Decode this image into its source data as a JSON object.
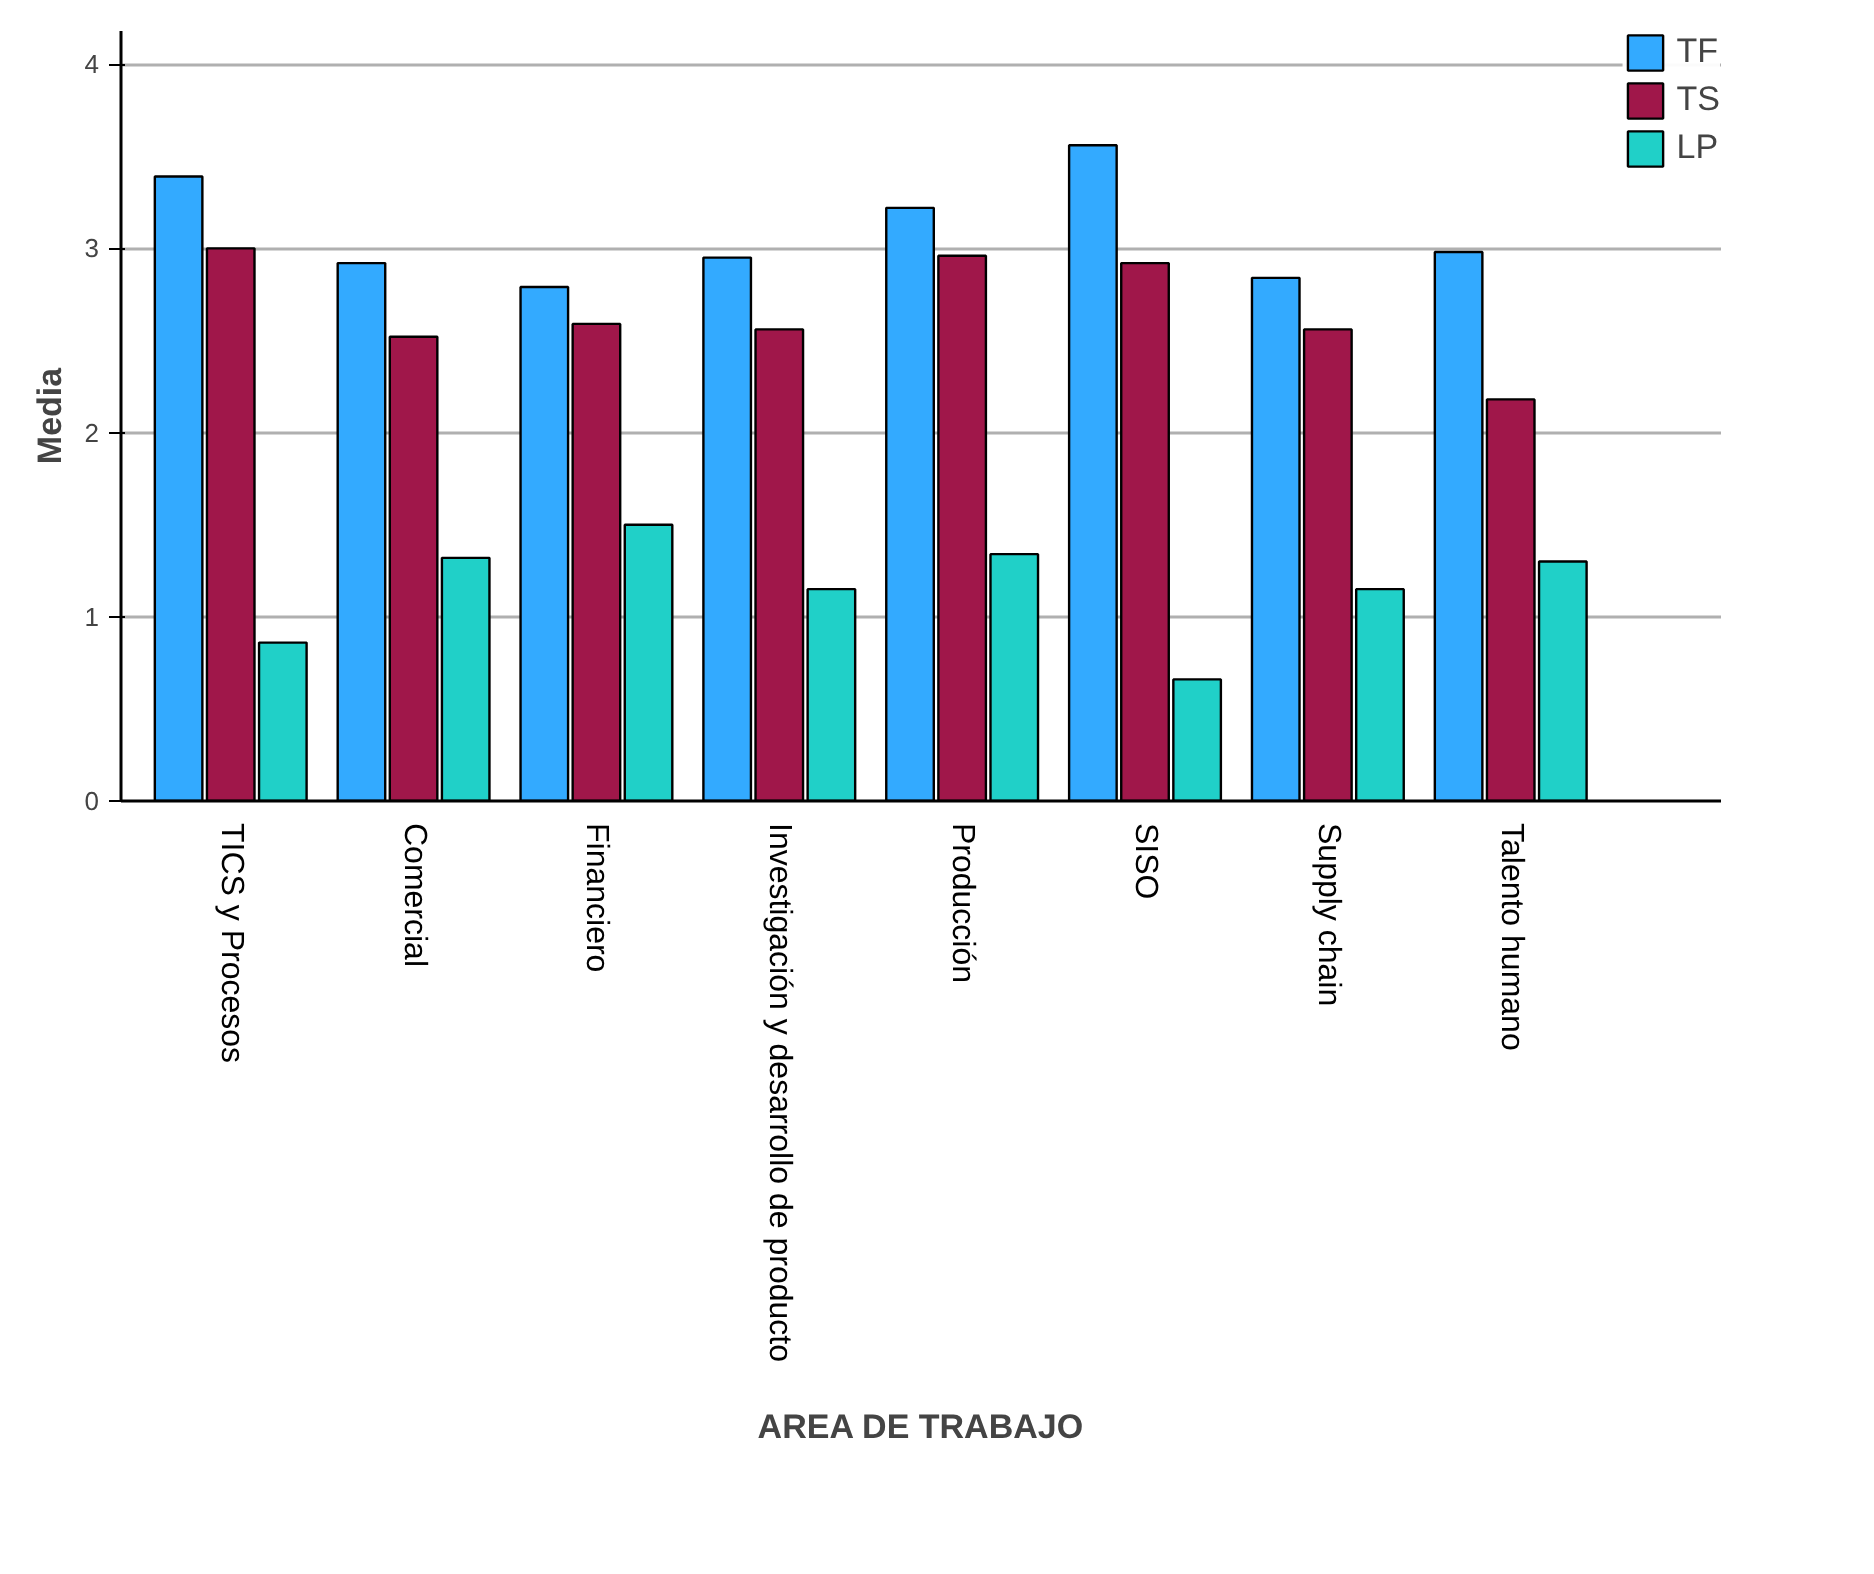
{
  "chart_data": {
    "type": "bar",
    "xlabel": "AREA DE TRABAJO",
    "ylabel": "Media",
    "categories": [
      "TICS y Procesos",
      "Comercial",
      "Financiero",
      "Investigación y desarrollo de producto",
      "Producción",
      "SISO",
      "Supply chain",
      "Talento humano"
    ],
    "series": [
      {
        "name": "TF",
        "color": "#33aaff",
        "values": [
          3.39,
          2.92,
          2.79,
          2.95,
          3.22,
          3.56,
          2.84,
          2.98
        ]
      },
      {
        "name": "TS",
        "color": "#a0174a",
        "values": [
          3.0,
          2.52,
          2.59,
          2.56,
          2.96,
          2.92,
          2.56,
          2.18
        ]
      },
      {
        "name": "LP",
        "color": "#20d0c8",
        "values": [
          0.86,
          1.32,
          1.5,
          1.15,
          1.34,
          0.66,
          1.15,
          1.3
        ]
      }
    ],
    "ylim": [
      0,
      4.18
    ],
    "yticks": [
      0,
      1,
      2,
      3,
      4
    ],
    "grid": "y",
    "legend": "top right"
  }
}
